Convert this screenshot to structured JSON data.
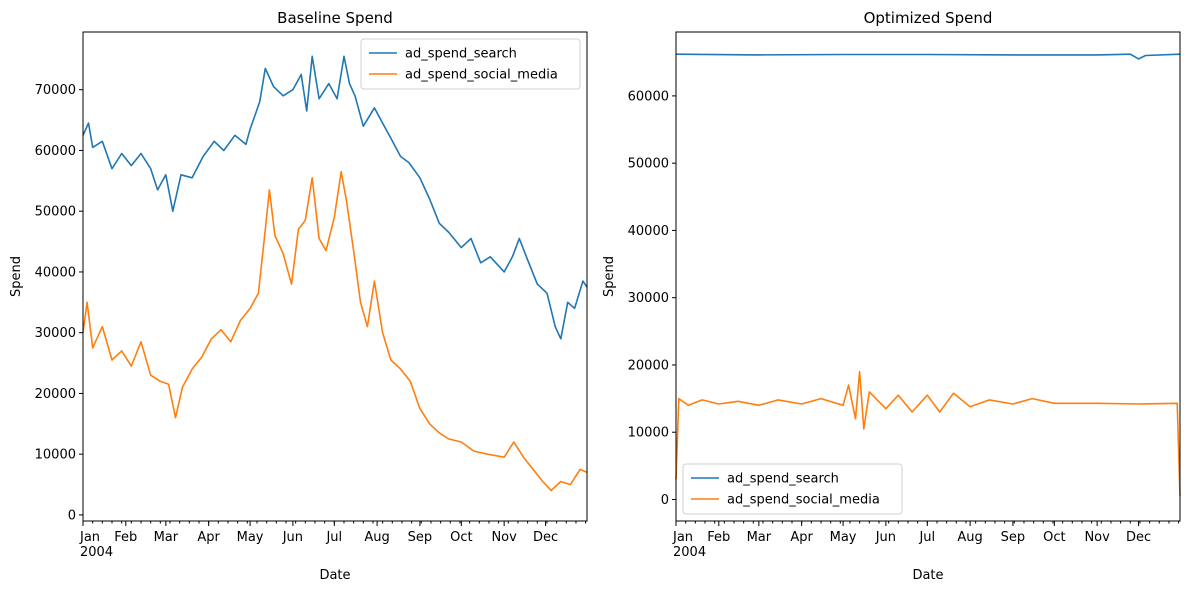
{
  "colors": {
    "search": "#1f77b4",
    "social": "#ff7f0e"
  },
  "x_ticks": [
    {
      "date": "2004-01-01",
      "label": "Jan",
      "sub": "2004"
    },
    {
      "date": "2004-02-01",
      "label": "Feb",
      "sub": ""
    },
    {
      "date": "2004-03-01",
      "label": "Mar",
      "sub": ""
    },
    {
      "date": "2004-04-01",
      "label": "Apr",
      "sub": ""
    },
    {
      "date": "2004-05-01",
      "label": "May",
      "sub": ""
    },
    {
      "date": "2004-06-01",
      "label": "Jun",
      "sub": ""
    },
    {
      "date": "2004-07-01",
      "label": "Jul",
      "sub": ""
    },
    {
      "date": "2004-08-01",
      "label": "Aug",
      "sub": ""
    },
    {
      "date": "2004-09-01",
      "label": "Sep",
      "sub": ""
    },
    {
      "date": "2004-10-01",
      "label": "Oct",
      "sub": ""
    },
    {
      "date": "2004-11-01",
      "label": "Nov",
      "sub": ""
    },
    {
      "date": "2004-12-01",
      "label": "Dec",
      "sub": ""
    }
  ],
  "chart_data": [
    {
      "type": "line",
      "title": "Baseline Spend",
      "xlabel": "Date",
      "ylabel": "Spend",
      "xlim": [
        "2004-01-01",
        "2004-12-31"
      ],
      "ylim": [
        -1000,
        79500
      ],
      "yticks": [
        0,
        10000,
        20000,
        30000,
        40000,
        50000,
        60000,
        70000
      ],
      "legend_position": "upper-right",
      "grid": false,
      "series": [
        {
          "name": "ad_spend_search",
          "color_key": "search",
          "points": [
            [
              "2004-01-01",
              62500
            ],
            [
              "2004-01-05",
              64500
            ],
            [
              "2004-01-08",
              60500
            ],
            [
              "2004-01-15",
              61500
            ],
            [
              "2004-01-22",
              57000
            ],
            [
              "2004-01-29",
              59500
            ],
            [
              "2004-02-05",
              57500
            ],
            [
              "2004-02-12",
              59500
            ],
            [
              "2004-02-19",
              57000
            ],
            [
              "2004-02-24",
              53500
            ],
            [
              "2004-03-01",
              56000
            ],
            [
              "2004-03-06",
              50000
            ],
            [
              "2004-03-12",
              56000
            ],
            [
              "2004-03-20",
              55500
            ],
            [
              "2004-03-28",
              59000
            ],
            [
              "2004-04-05",
              61500
            ],
            [
              "2004-04-12",
              60000
            ],
            [
              "2004-04-20",
              62500
            ],
            [
              "2004-04-28",
              61000
            ],
            [
              "2004-05-01",
              63500
            ],
            [
              "2004-05-08",
              68000
            ],
            [
              "2004-05-12",
              73500
            ],
            [
              "2004-05-18",
              70500
            ],
            [
              "2004-05-25",
              69000
            ],
            [
              "2004-06-01",
              70000
            ],
            [
              "2004-06-07",
              72500
            ],
            [
              "2004-06-11",
              66500
            ],
            [
              "2004-06-15",
              75500
            ],
            [
              "2004-06-20",
              68500
            ],
            [
              "2004-06-27",
              71000
            ],
            [
              "2004-07-03",
              68500
            ],
            [
              "2004-07-08",
              75500
            ],
            [
              "2004-07-12",
              71000
            ],
            [
              "2004-07-16",
              69000
            ],
            [
              "2004-07-22",
              64000
            ],
            [
              "2004-07-30",
              67000
            ],
            [
              "2004-08-05",
              64500
            ],
            [
              "2004-08-11",
              62000
            ],
            [
              "2004-08-18",
              59000
            ],
            [
              "2004-08-24",
              58000
            ],
            [
              "2004-09-01",
              55500
            ],
            [
              "2004-09-08",
              52000
            ],
            [
              "2004-09-15",
              48000
            ],
            [
              "2004-09-22",
              46500
            ],
            [
              "2004-10-01",
              44000
            ],
            [
              "2004-10-08",
              45500
            ],
            [
              "2004-10-15",
              41500
            ],
            [
              "2004-10-22",
              42500
            ],
            [
              "2004-11-01",
              40000
            ],
            [
              "2004-11-07",
              42500
            ],
            [
              "2004-11-12",
              45500
            ],
            [
              "2004-11-18",
              42000
            ],
            [
              "2004-11-25",
              38000
            ],
            [
              "2004-12-02",
              36500
            ],
            [
              "2004-12-08",
              31000
            ],
            [
              "2004-12-12",
              29000
            ],
            [
              "2004-12-17",
              35000
            ],
            [
              "2004-12-22",
              34000
            ],
            [
              "2004-12-28",
              38500
            ],
            [
              "2004-12-31",
              37500
            ]
          ]
        },
        {
          "name": "ad_spend_social_media",
          "color_key": "social",
          "points": [
            [
              "2004-01-01",
              30000
            ],
            [
              "2004-01-04",
              35000
            ],
            [
              "2004-01-08",
              27500
            ],
            [
              "2004-01-15",
              31000
            ],
            [
              "2004-01-22",
              25500
            ],
            [
              "2004-01-29",
              27000
            ],
            [
              "2004-02-05",
              24500
            ],
            [
              "2004-02-12",
              28500
            ],
            [
              "2004-02-19",
              23000
            ],
            [
              "2004-02-26",
              22000
            ],
            [
              "2004-03-03",
              21500
            ],
            [
              "2004-03-08",
              16000
            ],
            [
              "2004-03-13",
              21000
            ],
            [
              "2004-03-20",
              24000
            ],
            [
              "2004-03-27",
              26000
            ],
            [
              "2004-04-03",
              29000
            ],
            [
              "2004-04-10",
              30500
            ],
            [
              "2004-04-17",
              28500
            ],
            [
              "2004-04-24",
              32000
            ],
            [
              "2004-05-01",
              34000
            ],
            [
              "2004-05-07",
              36500
            ],
            [
              "2004-05-12",
              47000
            ],
            [
              "2004-05-15",
              53500
            ],
            [
              "2004-05-19",
              46000
            ],
            [
              "2004-05-25",
              43000
            ],
            [
              "2004-05-31",
              38000
            ],
            [
              "2004-06-05",
              47000
            ],
            [
              "2004-06-10",
              48500
            ],
            [
              "2004-06-15",
              55500
            ],
            [
              "2004-06-20",
              45500
            ],
            [
              "2004-06-25",
              43500
            ],
            [
              "2004-07-01",
              49000
            ],
            [
              "2004-07-06",
              56500
            ],
            [
              "2004-07-10",
              51500
            ],
            [
              "2004-07-15",
              43500
            ],
            [
              "2004-07-20",
              35000
            ],
            [
              "2004-07-25",
              31000
            ],
            [
              "2004-07-30",
              38500
            ],
            [
              "2004-08-05",
              30000
            ],
            [
              "2004-08-11",
              25500
            ],
            [
              "2004-08-18",
              24000
            ],
            [
              "2004-08-25",
              22000
            ],
            [
              "2004-09-01",
              17500
            ],
            [
              "2004-09-08",
              15000
            ],
            [
              "2004-09-15",
              13500
            ],
            [
              "2004-09-22",
              12500
            ],
            [
              "2004-10-01",
              12000
            ],
            [
              "2004-10-10",
              10500
            ],
            [
              "2004-10-20",
              10000
            ],
            [
              "2004-11-01",
              9500
            ],
            [
              "2004-11-08",
              12000
            ],
            [
              "2004-11-15",
              9500
            ],
            [
              "2004-11-22",
              7500
            ],
            [
              "2004-11-29",
              5500
            ],
            [
              "2004-12-05",
              4000
            ],
            [
              "2004-12-12",
              5500
            ],
            [
              "2004-12-19",
              5000
            ],
            [
              "2004-12-26",
              7500
            ],
            [
              "2004-12-31",
              7000
            ]
          ]
        }
      ]
    },
    {
      "type": "line",
      "title": "Optimized Spend",
      "xlabel": "Date",
      "ylabel": "Spend",
      "xlim": [
        "2004-01-01",
        "2004-12-31"
      ],
      "ylim": [
        -3200,
        69500
      ],
      "yticks": [
        0,
        10000,
        20000,
        30000,
        40000,
        50000,
        60000
      ],
      "legend_position": "lower-left",
      "grid": false,
      "series": [
        {
          "name": "ad_spend_search",
          "color_key": "search",
          "points": [
            [
              "2004-01-01",
              66200
            ],
            [
              "2004-03-01",
              66100
            ],
            [
              "2004-05-01",
              66150
            ],
            [
              "2004-07-01",
              66150
            ],
            [
              "2004-09-01",
              66100
            ],
            [
              "2004-11-01",
              66100
            ],
            [
              "2004-11-25",
              66200
            ],
            [
              "2004-12-01",
              65500
            ],
            [
              "2004-12-06",
              66000
            ],
            [
              "2004-12-31",
              66200
            ]
          ]
        },
        {
          "name": "ad_spend_social_media",
          "color_key": "social",
          "points": [
            [
              "2004-01-01",
              3000
            ],
            [
              "2004-01-03",
              15000
            ],
            [
              "2004-01-10",
              14000
            ],
            [
              "2004-01-20",
              14800
            ],
            [
              "2004-02-01",
              14200
            ],
            [
              "2004-02-15",
              14600
            ],
            [
              "2004-03-01",
              14000
            ],
            [
              "2004-03-15",
              14800
            ],
            [
              "2004-04-01",
              14200
            ],
            [
              "2004-04-15",
              15000
            ],
            [
              "2004-05-01",
              14000
            ],
            [
              "2004-05-05",
              17000
            ],
            [
              "2004-05-10",
              12000
            ],
            [
              "2004-05-13",
              19000
            ],
            [
              "2004-05-16",
              10500
            ],
            [
              "2004-05-20",
              16000
            ],
            [
              "2004-06-01",
              13500
            ],
            [
              "2004-06-10",
              15500
            ],
            [
              "2004-06-20",
              13000
            ],
            [
              "2004-07-01",
              15500
            ],
            [
              "2004-07-10",
              13000
            ],
            [
              "2004-07-20",
              15800
            ],
            [
              "2004-08-01",
              13800
            ],
            [
              "2004-08-15",
              14800
            ],
            [
              "2004-09-01",
              14200
            ],
            [
              "2004-09-15",
              15000
            ],
            [
              "2004-10-01",
              14300
            ],
            [
              "2004-11-01",
              14300
            ],
            [
              "2004-12-01",
              14200
            ],
            [
              "2004-12-29",
              14300
            ],
            [
              "2004-12-31",
              500
            ]
          ]
        }
      ]
    }
  ]
}
